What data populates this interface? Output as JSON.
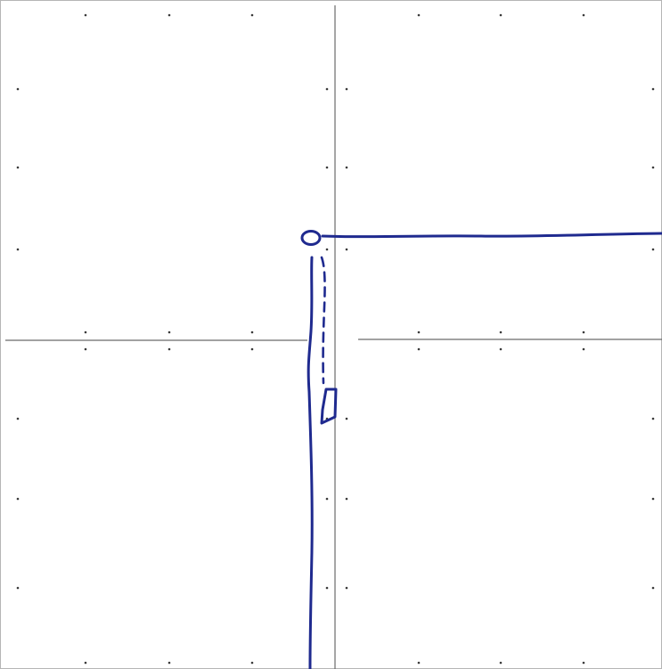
{
  "colors": {
    "paper": "#ffffff",
    "grid_line": "#6b6b6b",
    "grid_dot": "#3a3a3a",
    "ink": "#1f2a8f",
    "border": "#9a9a9a"
  },
  "icons": {
    "pivot_marker": "circle-marker-icon",
    "endpoint_marker": "block-marker-icon"
  }
}
